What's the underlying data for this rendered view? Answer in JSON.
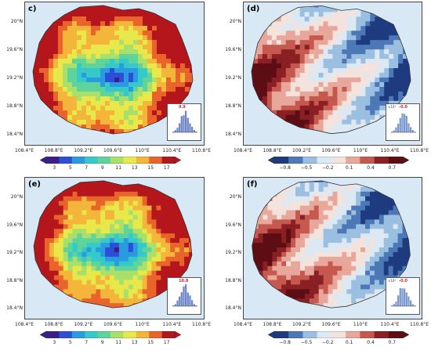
{
  "panels": [
    {
      "id": "c",
      "letter": "c)",
      "variable": "sequential",
      "inset_value": "9.9",
      "colorbar": {
        "ticks": [
          "3",
          "5",
          "7",
          "9",
          "11",
          "13",
          "15",
          "17"
        ],
        "palette": "rainbow"
      },
      "inset_xticks": [
        "0",
        "5",
        "10",
        "15",
        "20",
        "25"
      ],
      "inset_yticks": [
        "0",
        "2",
        "4",
        "6"
      ]
    },
    {
      "id": "d",
      "letter": "(d)",
      "variable": "diverging",
      "inset_value": "-0.0",
      "inset_exp": "×10³",
      "colorbar": {
        "ticks": [
          "−0.8",
          "−0.5",
          "−0.2",
          "0.1",
          "0.4",
          "0.7"
        ],
        "palette": "diverging"
      },
      "inset_xticks": [
        "−0.6",
        "−0.2",
        "0.2",
        "0.6"
      ],
      "inset_yticks": [
        "0",
        "2",
        "4",
        "6"
      ]
    },
    {
      "id": "e",
      "letter": "(e)",
      "variable": "sequential",
      "inset_value": "10.8",
      "colorbar": {
        "ticks": [
          "3",
          "5",
          "7",
          "9",
          "11",
          "13",
          "15",
          "17"
        ],
        "palette": "rainbow"
      },
      "inset_xticks": [
        "0",
        "5",
        "10",
        "15",
        "20",
        "25"
      ],
      "inset_yticks": [
        "0",
        "2",
        "4",
        "6"
      ]
    },
    {
      "id": "f",
      "letter": "(f)",
      "variable": "diverging",
      "inset_value": "-0.0",
      "inset_exp": "×10³",
      "colorbar": {
        "ticks": [
          "−0.8",
          "−0.5",
          "−0.2",
          "0.1",
          "0.4",
          "0.7"
        ],
        "palette": "diverging"
      },
      "inset_xticks": [
        "−0.6",
        "−0.2",
        "0.2",
        "0.6"
      ],
      "inset_yticks": [
        "0",
        "2",
        "4",
        "6"
      ]
    }
  ],
  "lat_labels": [
    "20°N",
    "19.6°N",
    "19.2°N",
    "18.8°N",
    "18.4°N"
  ],
  "lon_labels": [
    "108.4°E",
    "108.8°E",
    "109.2°E",
    "109.6°E",
    "110°E",
    "110.4°E",
    "110.8°E"
  ],
  "colors": {
    "ocean": "#d9e8f5",
    "rainbow": [
      "#3b1e8a",
      "#2b4fd6",
      "#2a9be0",
      "#35c9c9",
      "#5fd49a",
      "#a8e06b",
      "#e8e84a",
      "#f3b53a",
      "#e8642a",
      "#b5161c"
    ],
    "diverging": [
      "#1f3b80",
      "#4c78b8",
      "#9bbfe0",
      "#dce8f2",
      "#f4e2dc",
      "#e7a79a",
      "#c6594f",
      "#8a1f24",
      "#5c0e14"
    ]
  }
}
